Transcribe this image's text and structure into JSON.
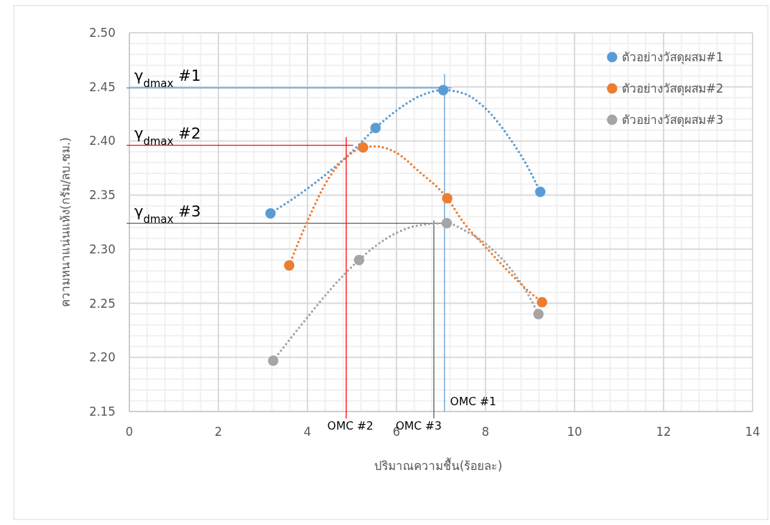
{
  "chart_data": {
    "type": "scatter",
    "xlabel": "ปริมาณความชื้น(ร้อยละ)",
    "ylabel": "ความหนาแน่นแห้ง(กรัม/ลบ.ซม.)",
    "xlim": [
      0,
      14
    ],
    "xticks": [
      0,
      2,
      4,
      6,
      8,
      10,
      12,
      14
    ],
    "ylim": [
      2.15,
      2.5
    ],
    "yticks": [
      2.15,
      {
        "value": 2.2,
        "label": "2.20"
      },
      2.25,
      {
        "value": 2.3,
        "label": "2.30"
      },
      2.35,
      {
        "value": 2.4,
        "label": "2.40"
      },
      2.45,
      {
        "value": 2.5,
        "label": "2.50"
      }
    ],
    "grid": true,
    "legend": "top right",
    "marker": "circle",
    "series": [
      {
        "name": "ตัวอย่างวัสดุผสม#1",
        "color": "#5b9bd5",
        "x": [
          3.17,
          5.53,
          7.05,
          9.23
        ],
        "values": [
          2.333,
          2.412,
          2.447,
          2.353
        ]
      },
      {
        "name": "ตัวอย่างวัสดุผสม#2",
        "color": "#ed7d31",
        "x": [
          3.59,
          5.25,
          7.14,
          9.27
        ],
        "values": [
          2.285,
          2.394,
          2.347,
          2.251
        ]
      },
      {
        "name": "ตัวอย่างวัสดุผสม#3",
        "color": "#a5a5a5",
        "x": [
          3.23,
          5.16,
          7.13,
          9.19
        ],
        "values": [
          2.197,
          2.29,
          2.324,
          2.24
        ]
      },
      {
        "type": "line",
        "line_style": "dotted",
        "marker": "none",
        "color": "#5b9bd5",
        "x": [
          3.17,
          4,
          4.5,
          5,
          5.53,
          6,
          6.5,
          7.05,
          7.5,
          8,
          8.5,
          9,
          9.23
        ],
        "values": [
          2.333,
          2.356,
          2.372,
          2.39,
          2.412,
          2.428,
          2.441,
          2.447,
          2.444,
          2.43,
          2.405,
          2.372,
          2.353
        ]
      },
      {
        "type": "line",
        "line_style": "dotted",
        "marker": "none",
        "color": "#ed7d31",
        "x": [
          3.59,
          4,
          4.5,
          5,
          5.25,
          5.5,
          6,
          6.5,
          7.14,
          7.5,
          8,
          8.5,
          9,
          9.27
        ],
        "values": [
          2.285,
          2.326,
          2.367,
          2.389,
          2.394,
          2.395,
          2.389,
          2.372,
          2.347,
          2.325,
          2.302,
          2.28,
          2.26,
          2.251
        ]
      },
      {
        "type": "line",
        "line_style": "dotted",
        "marker": "none",
        "color": "#a5a5a5",
        "x": [
          3.23,
          4,
          4.5,
          5.16,
          5.5,
          6,
          6.5,
          7.13,
          7.5,
          8,
          8.5,
          9,
          9.19
        ],
        "values": [
          2.197,
          2.237,
          2.262,
          2.29,
          2.302,
          2.315,
          2.322,
          2.324,
          2.318,
          2.305,
          2.285,
          2.255,
          2.24
        ]
      }
    ],
    "ref_lines": [
      {
        "axis": "y",
        "value": 2.449,
        "label": "γ$_{dmax}$ #1",
        "color": "#5b9bd5"
      },
      {
        "axis": "y",
        "value": 2.396,
        "label": "γ$_{dmax}$ #2",
        "color": "#ff0000"
      },
      {
        "axis": "y",
        "value": 2.324,
        "label": "γ$_{dmax}$ #3",
        "color": "#595959"
      },
      {
        "axis": "x",
        "value": 7.08,
        "label": "OMC #1",
        "color": "#5b9bd5"
      },
      {
        "axis": "x",
        "value": 4.87,
        "label": "OMC #2",
        "color": "#ff0000"
      },
      {
        "axis": "x",
        "value": 6.84,
        "label": "OMC #3",
        "color": "#595959"
      }
    ]
  }
}
